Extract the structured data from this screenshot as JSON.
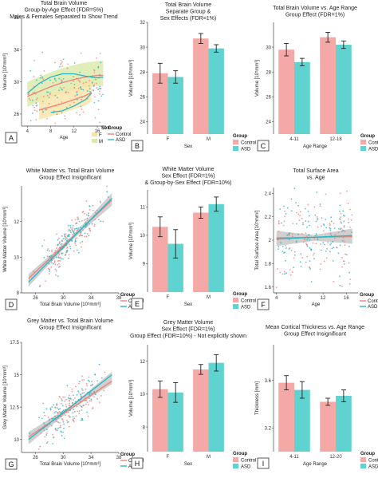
{
  "colors": {
    "control": "#f4a9a6",
    "control_line": "#f08078",
    "asd": "#5fd3d0",
    "asd_line": "#26b5c3",
    "male_band": "#d9eaa8",
    "female_band": "#f7e3a6",
    "ci_band": "#a9a9a9"
  },
  "legend": {
    "group_title": "Group",
    "control": "Control",
    "asd": "ASD",
    "sex_title": "Sex",
    "female": "F",
    "male": "M"
  },
  "chart_data": [
    {
      "panel": "A",
      "type": "scatter",
      "title": [
        "Total Brain Volume",
        "Group-by-Age Effect (FDR=5%)",
        "Males & Females Separated to Show Trend"
      ],
      "xlabel": "Age",
      "ylabel": "Volume [10⁵mm³]",
      "xlim": [
        3,
        17.5
      ],
      "ylim": [
        24.5,
        38
      ],
      "xticks": [
        4,
        8,
        12,
        16
      ],
      "yticks": [
        26,
        30,
        34,
        38
      ],
      "series": [
        {
          "name": "Control",
          "sex": "M",
          "x": [
            4,
            6,
            8,
            10,
            12,
            14,
            16,
            17
          ],
          "y": [
            28.2,
            28.8,
            29.4,
            29.9,
            30.3,
            30.6,
            30.8,
            30.8
          ]
        },
        {
          "name": "ASD",
          "sex": "M",
          "x": [
            4,
            6,
            8,
            10,
            12,
            14,
            16,
            17
          ],
          "y": [
            28.6,
            29.8,
            30.6,
            31.0,
            31.0,
            30.7,
            30.5,
            30.6
          ]
        },
        {
          "name": "Control",
          "sex": "F",
          "x": [
            6,
            8,
            10,
            12,
            14,
            15
          ],
          "y": [
            26.5,
            26.9,
            27.3,
            27.8,
            28.3,
            28.7
          ]
        },
        {
          "name": "ASD",
          "sex": "F",
          "x": [
            8,
            10,
            12,
            14,
            15
          ],
          "y": [
            26.2,
            26.4,
            27.0,
            27.8,
            28.6
          ]
        }
      ]
    },
    {
      "panel": "B",
      "type": "bar",
      "title": [
        "Total Brain Volume",
        "Separate Group &",
        "Sex Effects (FDR=1%)"
      ],
      "xlabel": "Sex",
      "ylabel": "Volume [10⁵mm³]",
      "categories": [
        "F",
        "M"
      ],
      "ylim": [
        23,
        32
      ],
      "yticks": [
        24,
        26,
        28,
        30,
        32
      ],
      "series": [
        {
          "name": "Control",
          "values": [
            27.9,
            30.7
          ],
          "err": [
            0.8,
            0.4
          ]
        },
        {
          "name": "ASD",
          "values": [
            27.6,
            29.9
          ],
          "err": [
            0.5,
            0.3
          ]
        }
      ]
    },
    {
      "panel": "C",
      "type": "bar",
      "title": [
        "Total Brain Volume vs. Age Range",
        "Group Effect (FDR=1%)"
      ],
      "xlabel": "Age Range",
      "ylabel": "Volume [10⁵mm³]",
      "categories": [
        "4-11",
        "12-18"
      ],
      "ylim": [
        23,
        32
      ],
      "yticks": [
        24,
        26,
        28,
        30
      ],
      "series": [
        {
          "name": "Control",
          "values": [
            29.8,
            30.8
          ],
          "err": [
            0.5,
            0.4
          ]
        },
        {
          "name": "ASD",
          "values": [
            28.8,
            30.2
          ],
          "err": [
            0.3,
            0.3
          ]
        }
      ]
    },
    {
      "panel": "D",
      "type": "scatter",
      "title": [
        "White Matter vs. Total Brain Volume",
        "Group Effect Insignificant"
      ],
      "xlabel": "Total Brain Volume [10⁵mm³]",
      "ylabel": "White Matter Volume [10⁵mm³]",
      "xlim": [
        24,
        38
      ],
      "ylim": [
        8,
        14
      ],
      "xticks": [
        26,
        30,
        34,
        38
      ],
      "yticks": [
        8,
        10,
        12
      ],
      "series": [
        {
          "name": "Control",
          "x": [
            25,
            37
          ],
          "y": [
            8.8,
            13.2
          ]
        },
        {
          "name": "ASD",
          "x": [
            25,
            37
          ],
          "y": [
            8.6,
            13.3
          ]
        }
      ]
    },
    {
      "panel": "E",
      "type": "bar",
      "title": [
        "White Matter Volume",
        "Sex Effect (FDR=1%)",
        "& Group-by-Sex Effect (FDR=10%)"
      ],
      "xlabel": "Sex",
      "ylabel": "Volume [10⁵mm³]",
      "categories": [
        "F",
        "M"
      ],
      "ylim": [
        8,
        11.6
      ],
      "yticks": [
        9,
        10,
        11
      ],
      "series": [
        {
          "name": "Control",
          "values": [
            10.3,
            10.8
          ],
          "err": [
            0.35,
            0.2
          ]
        },
        {
          "name": "ASD",
          "values": [
            9.7,
            11.1
          ],
          "err": [
            0.5,
            0.25
          ]
        }
      ]
    },
    {
      "panel": "F",
      "type": "scatter",
      "title": [
        "Total Surface Area",
        "vs. Age"
      ],
      "xlabel": "Age",
      "ylabel": "Total Surface Area [10⁵mm²]",
      "xlim": [
        3.5,
        18
      ],
      "ylim": [
        1.55,
        2.45
      ],
      "xticks": [
        4,
        8,
        12,
        16
      ],
      "yticks": [
        1.6,
        1.8,
        2.0,
        2.2,
        2.4
      ],
      "series": [
        {
          "name": "Control",
          "x": [
            4,
            17
          ],
          "y": [
            2.02,
            2.03
          ]
        },
        {
          "name": "ASD",
          "x": [
            4,
            17
          ],
          "y": [
            2.01,
            2.04
          ]
        }
      ]
    },
    {
      "panel": "G",
      "type": "scatter",
      "title": [
        "Grey Matter vs. Total Brain Volume",
        "Group Effect Insignificant"
      ],
      "xlabel": "Total Brain Volume [10⁵mm³]",
      "ylabel": "Grey Matter Volume [10⁵mm³]",
      "xlim": [
        24,
        38
      ],
      "ylim": [
        9,
        17.5
      ],
      "xticks": [
        26,
        30,
        34,
        38
      ],
      "yticks": [
        10,
        12.5,
        15,
        17.5
      ],
      "series": [
        {
          "name": "Control",
          "x": [
            25,
            37
          ],
          "y": [
            10.2,
            14.5
          ]
        },
        {
          "name": "ASD",
          "x": [
            25,
            37
          ],
          "y": [
            10.0,
            15.0
          ]
        }
      ]
    },
    {
      "panel": "H",
      "type": "bar",
      "title": [
        "Grey Matter Volume",
        "Sex Effect (FDR=1%)",
        "Group Effect (FDR=10%) - Not explicitly shown"
      ],
      "xlabel": "Sex",
      "ylabel": "Volume [10⁵mm³]",
      "categories": [
        "F",
        "M"
      ],
      "ylim": [
        6.5,
        13
      ],
      "yticks": [
        8,
        10,
        12
      ],
      "series": [
        {
          "name": "Control",
          "values": [
            10.3,
            11.5
          ],
          "err": [
            0.5,
            0.3
          ]
        },
        {
          "name": "ASD",
          "values": [
            10.1,
            11.9
          ],
          "err": [
            0.6,
            0.5
          ]
        }
      ]
    },
    {
      "panel": "I",
      "type": "bar",
      "title": [
        "Mean Cortical Thickness vs. Age Range",
        "Group Effect Insignificant"
      ],
      "xlabel": "Age Range",
      "ylabel": "Thickness [mm]",
      "categories": [
        "4-11",
        "12-20"
      ],
      "ylim": [
        3.0,
        3.9
      ],
      "yticks": [
        3.2,
        3.6
      ],
      "series": [
        {
          "name": "Control",
          "values": [
            3.58,
            3.42
          ],
          "err": [
            0.06,
            0.03
          ]
        },
        {
          "name": "ASD",
          "values": [
            3.52,
            3.47
          ],
          "err": [
            0.07,
            0.05
          ]
        }
      ]
    }
  ]
}
